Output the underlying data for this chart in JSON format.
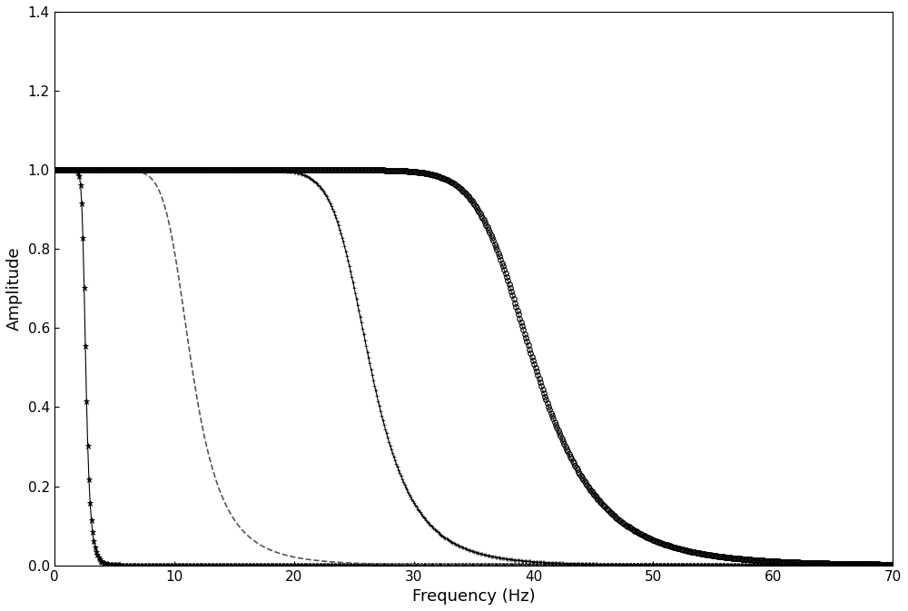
{
  "xlim": [
    0,
    70
  ],
  "ylim": [
    0,
    1.4
  ],
  "xticks": [
    0,
    10,
    20,
    30,
    40,
    50,
    60,
    70
  ],
  "yticks": [
    0,
    0.2,
    0.4,
    0.6,
    0.8,
    1.0,
    1.2,
    1.4
  ],
  "xlabel": "Frequency (Hz)",
  "ylabel": "Amplitude",
  "xlabel_fontsize": 13,
  "ylabel_fontsize": 13,
  "tick_fontsize": 11,
  "background_color": "#ffffff",
  "curve1_color": "#000000",
  "curve2_color": "#555555",
  "curve3_color": "#000000",
  "curve4_color": "#000000",
  "curve1_marker": "*",
  "curve3_marker": "+",
  "curve4_marker": "o",
  "curve1_fc": 2.5,
  "curve1_order": 10,
  "curve2_fc": 10.5,
  "curve2_order": 6,
  "curve3_fc": 25.0,
  "curve3_order": 10,
  "curve4_fc": 38.0,
  "curve4_order": 10,
  "markersize_star": 5,
  "markersize_plus": 3.5,
  "markersize_circle": 4,
  "n_points": 700,
  "figsize": [
    10.0,
    6.73
  ],
  "dpi": 100
}
